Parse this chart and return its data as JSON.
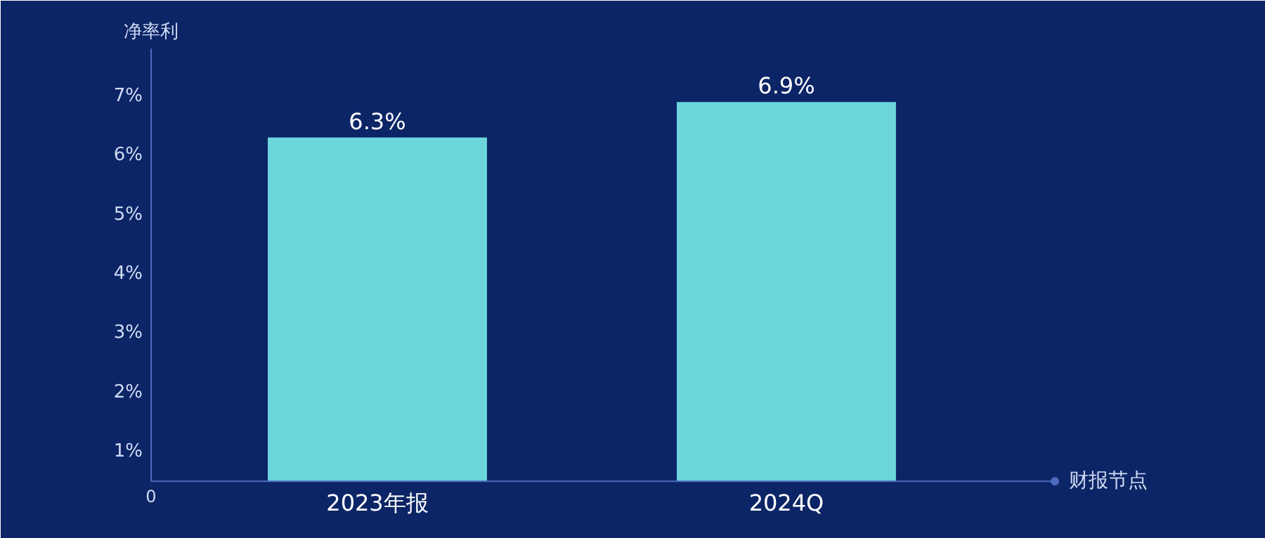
{
  "chart_data": {
    "type": "bar",
    "ylabel": "净率利",
    "xlabel": "财报节点",
    "categories": [
      "2023年报",
      "2024Q"
    ],
    "values": [
      6.3,
      6.9
    ],
    "value_labels": [
      "6.3%",
      "6.9%"
    ],
    "color": "#6cd6dc",
    "ylim": [
      0.5,
      7.8
    ],
    "yticks": [
      {
        "value": 1,
        "label": "1%"
      },
      {
        "value": 2,
        "label": "2%"
      },
      {
        "value": 3,
        "label": "3%"
      },
      {
        "value": 4,
        "label": "4%"
      },
      {
        "value": 5,
        "label": "5%"
      },
      {
        "value": 6,
        "label": "6%"
      },
      {
        "value": 7,
        "label": "7%"
      }
    ],
    "annotations": [
      "0"
    ]
  }
}
